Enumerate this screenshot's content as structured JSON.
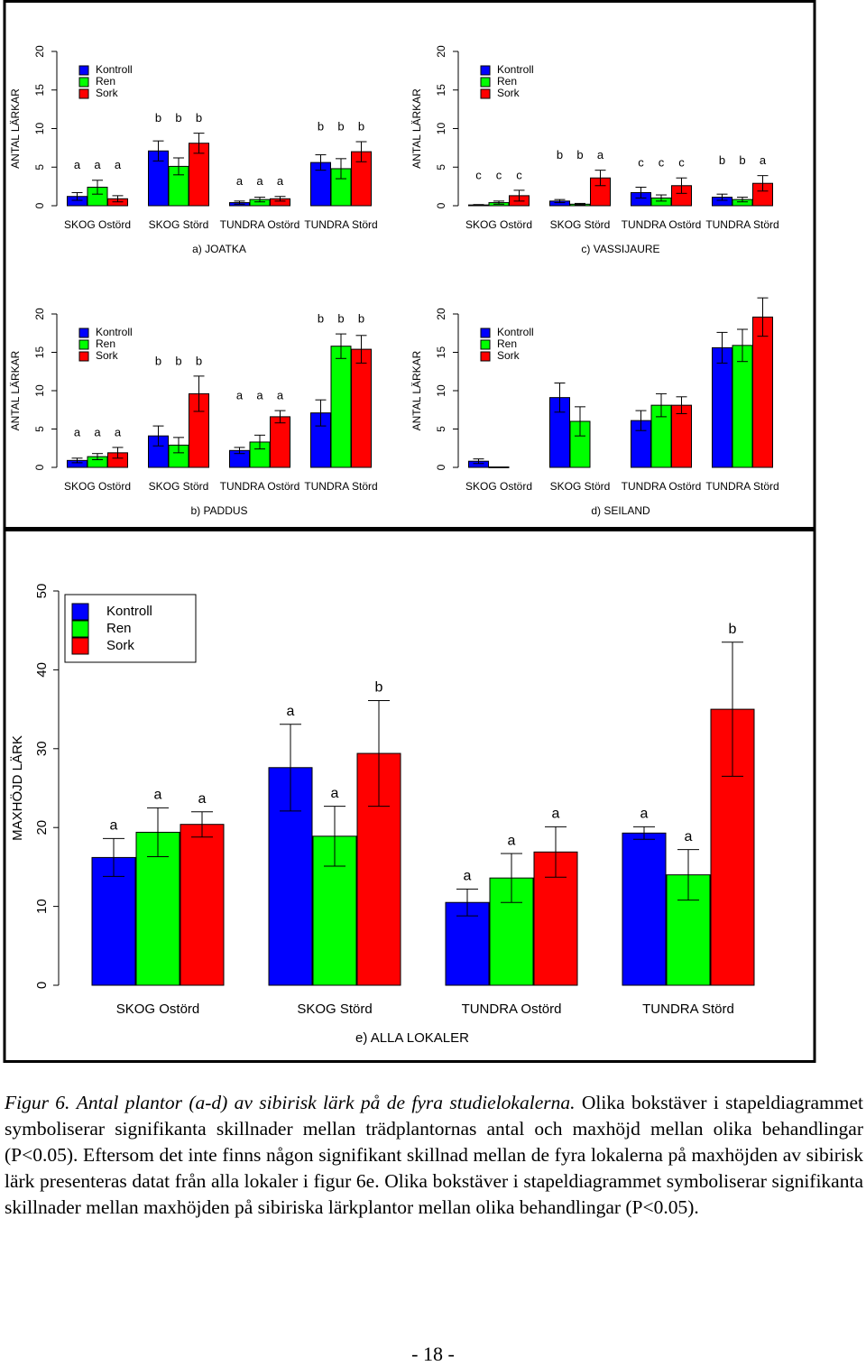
{
  "chart_data": [
    {
      "type": "bar",
      "title": "a) JOATKA",
      "y_label": "ANTAL LÄRKAR",
      "categories": [
        "SKOG Ostörd",
        "SKOG Störd",
        "TUNDRA Ostörd",
        "TUNDRA Störd"
      ],
      "ylim": [
        0,
        20
      ],
      "yticks": [
        0,
        5,
        10,
        15,
        20
      ],
      "series": [
        {
          "name": "Kontroll",
          "color": "#0000ff",
          "values": [
            1.2,
            7.1,
            0.4,
            5.6
          ],
          "errors": [
            0.5,
            1.3,
            0.2,
            1.0
          ],
          "letters": [
            "a",
            "b",
            "a",
            "b"
          ]
        },
        {
          "name": "Ren",
          "color": "#00ff00",
          "values": [
            2.4,
            5.1,
            0.8,
            4.8
          ],
          "errors": [
            0.9,
            1.1,
            0.3,
            1.3
          ],
          "letters": [
            "a",
            "b",
            "a",
            "b"
          ]
        },
        {
          "name": "Sork",
          "color": "#ff0000",
          "values": [
            0.9,
            8.1,
            0.9,
            7.0
          ],
          "errors": [
            0.4,
            1.3,
            0.3,
            1.3
          ],
          "letters": [
            "a",
            "b",
            "a",
            "b"
          ]
        }
      ]
    },
    {
      "type": "bar",
      "title": "b) PADDUS",
      "y_label": "ANTAL LÄRKAR",
      "categories": [
        "SKOG Ostörd",
        "SKOG Störd",
        "TUNDRA Ostörd",
        "TUNDRA Störd"
      ],
      "ylim": [
        0,
        20
      ],
      "yticks": [
        0,
        5,
        10,
        15,
        20
      ],
      "series": [
        {
          "name": "Kontroll",
          "color": "#0000ff",
          "values": [
            0.9,
            4.1,
            2.2,
            7.1
          ],
          "errors": [
            0.3,
            1.3,
            0.4,
            1.7
          ],
          "letters": [
            "a",
            "b",
            "a",
            "b"
          ]
        },
        {
          "name": "Ren",
          "color": "#00ff00",
          "values": [
            1.4,
            2.9,
            3.3,
            15.8
          ],
          "errors": [
            0.4,
            1.0,
            0.9,
            1.6
          ],
          "letters": [
            "a",
            "b",
            "a",
            "b"
          ]
        },
        {
          "name": "Sork",
          "color": "#ff0000",
          "values": [
            1.9,
            9.6,
            6.6,
            15.4
          ],
          "errors": [
            0.7,
            2.3,
            0.8,
            1.8
          ],
          "letters": [
            "a",
            "b",
            "a",
            "b"
          ]
        }
      ]
    },
    {
      "type": "bar",
      "title": "c) VASSIJAURE",
      "y_label": "ANTAL LÄRKAR",
      "categories": [
        "SKOG Ostörd",
        "SKOG Störd",
        "TUNDRA Ostörd",
        "TUNDRA Störd"
      ],
      "ylim": [
        0,
        20
      ],
      "yticks": [
        0,
        5,
        10,
        15,
        20
      ],
      "series": [
        {
          "name": "Kontroll",
          "color": "#0000ff",
          "values": [
            0.1,
            0.6,
            1.7,
            1.1
          ],
          "errors": [
            0.05,
            0.2,
            0.7,
            0.4
          ],
          "letters": [
            "c",
            "b",
            "c",
            "b"
          ]
        },
        {
          "name": "Ren",
          "color": "#00ff00",
          "values": [
            0.4,
            0.2,
            1.0,
            0.8
          ],
          "errors": [
            0.2,
            0.1,
            0.4,
            0.3
          ],
          "letters": [
            "c",
            "b",
            "c",
            "b"
          ]
        },
        {
          "name": "Sork",
          "color": "#ff0000",
          "values": [
            1.3,
            3.6,
            2.6,
            2.9
          ],
          "errors": [
            0.7,
            1.0,
            1.0,
            1.0
          ],
          "letters": [
            "c",
            "a",
            "c",
            "a"
          ]
        }
      ]
    },
    {
      "type": "bar",
      "title": "d) SEILAND",
      "y_label": "ANTAL LÄRKAR",
      "categories": [
        "SKOG Ostörd",
        "SKOG Störd",
        "TUNDRA Ostörd",
        "TUNDRA Störd"
      ],
      "ylim": [
        0,
        20
      ],
      "yticks": [
        0,
        5,
        10,
        15,
        20
      ],
      "series": [
        {
          "name": "Kontroll",
          "color": "#0000ff",
          "values": [
            0.8,
            9.1,
            6.1,
            15.6
          ],
          "errors": [
            0.3,
            1.9,
            1.3,
            2.0
          ]
        },
        {
          "name": "Ren",
          "color": "#00ff00",
          "values": [
            0.05,
            6.0,
            8.1,
            15.9
          ],
          "errors": [
            null,
            1.9,
            1.5,
            2.1
          ]
        },
        {
          "name": "Sork",
          "color": "#ff0000",
          "values": [
            null,
            null,
            8.1,
            19.6
          ],
          "errors": [
            null,
            null,
            1.1,
            2.5
          ]
        }
      ]
    },
    {
      "type": "bar",
      "title": "e) ALLA LOKALER",
      "y_label": "MAXHÖJD LÄRK",
      "categories": [
        "SKOG Ostörd",
        "SKOG Störd",
        "TUNDRA Ostörd",
        "TUNDRA Störd"
      ],
      "ylim": [
        0,
        50
      ],
      "yticks": [
        0,
        10,
        20,
        30,
        40,
        50
      ],
      "legend_box": true,
      "series": [
        {
          "name": "Kontroll",
          "color": "#0000ff",
          "values": [
            16.2,
            27.6,
            10.5,
            19.3
          ],
          "errors": [
            2.4,
            5.5,
            1.7,
            0.8
          ],
          "letters": [
            "a",
            "a",
            "a",
            "a"
          ]
        },
        {
          "name": "Ren",
          "color": "#00ff00",
          "values": [
            19.4,
            18.9,
            13.6,
            14.0
          ],
          "errors": [
            3.1,
            3.8,
            3.1,
            3.2
          ],
          "letters": [
            "a",
            "a",
            "a",
            "a"
          ]
        },
        {
          "name": "Sork",
          "color": "#ff0000",
          "values": [
            20.4,
            29.4,
            16.9,
            35.0
          ],
          "errors": [
            1.6,
            6.7,
            3.2,
            8.5
          ],
          "letters": [
            "a",
            "b",
            "a",
            "b"
          ]
        }
      ]
    }
  ],
  "caption": {
    "label": "Figur 6.",
    "italic": "Antal plantor (a-d) av sibirisk lärk på de fyra studielokalerna.",
    "text": "Olika bokstäver i stapeldiagrammet symboliserar signifikanta skillnader mellan trädplantornas antal och maxhöjd mellan olika behandlingar (P<0.05). Eftersom det inte finns någon signifikant skillnad mellan de fyra lokalerna på maxhöjden av sibirisk lärk presenteras datat från alla lokaler i figur 6e. Olika bokstäver i stapeldiagrammet symboliserar signifikanta skillnader mellan maxhöjden på sibiriska lärkplantor mellan olika behandlingar (P<0.05)."
  },
  "page_number": "- 18 -"
}
